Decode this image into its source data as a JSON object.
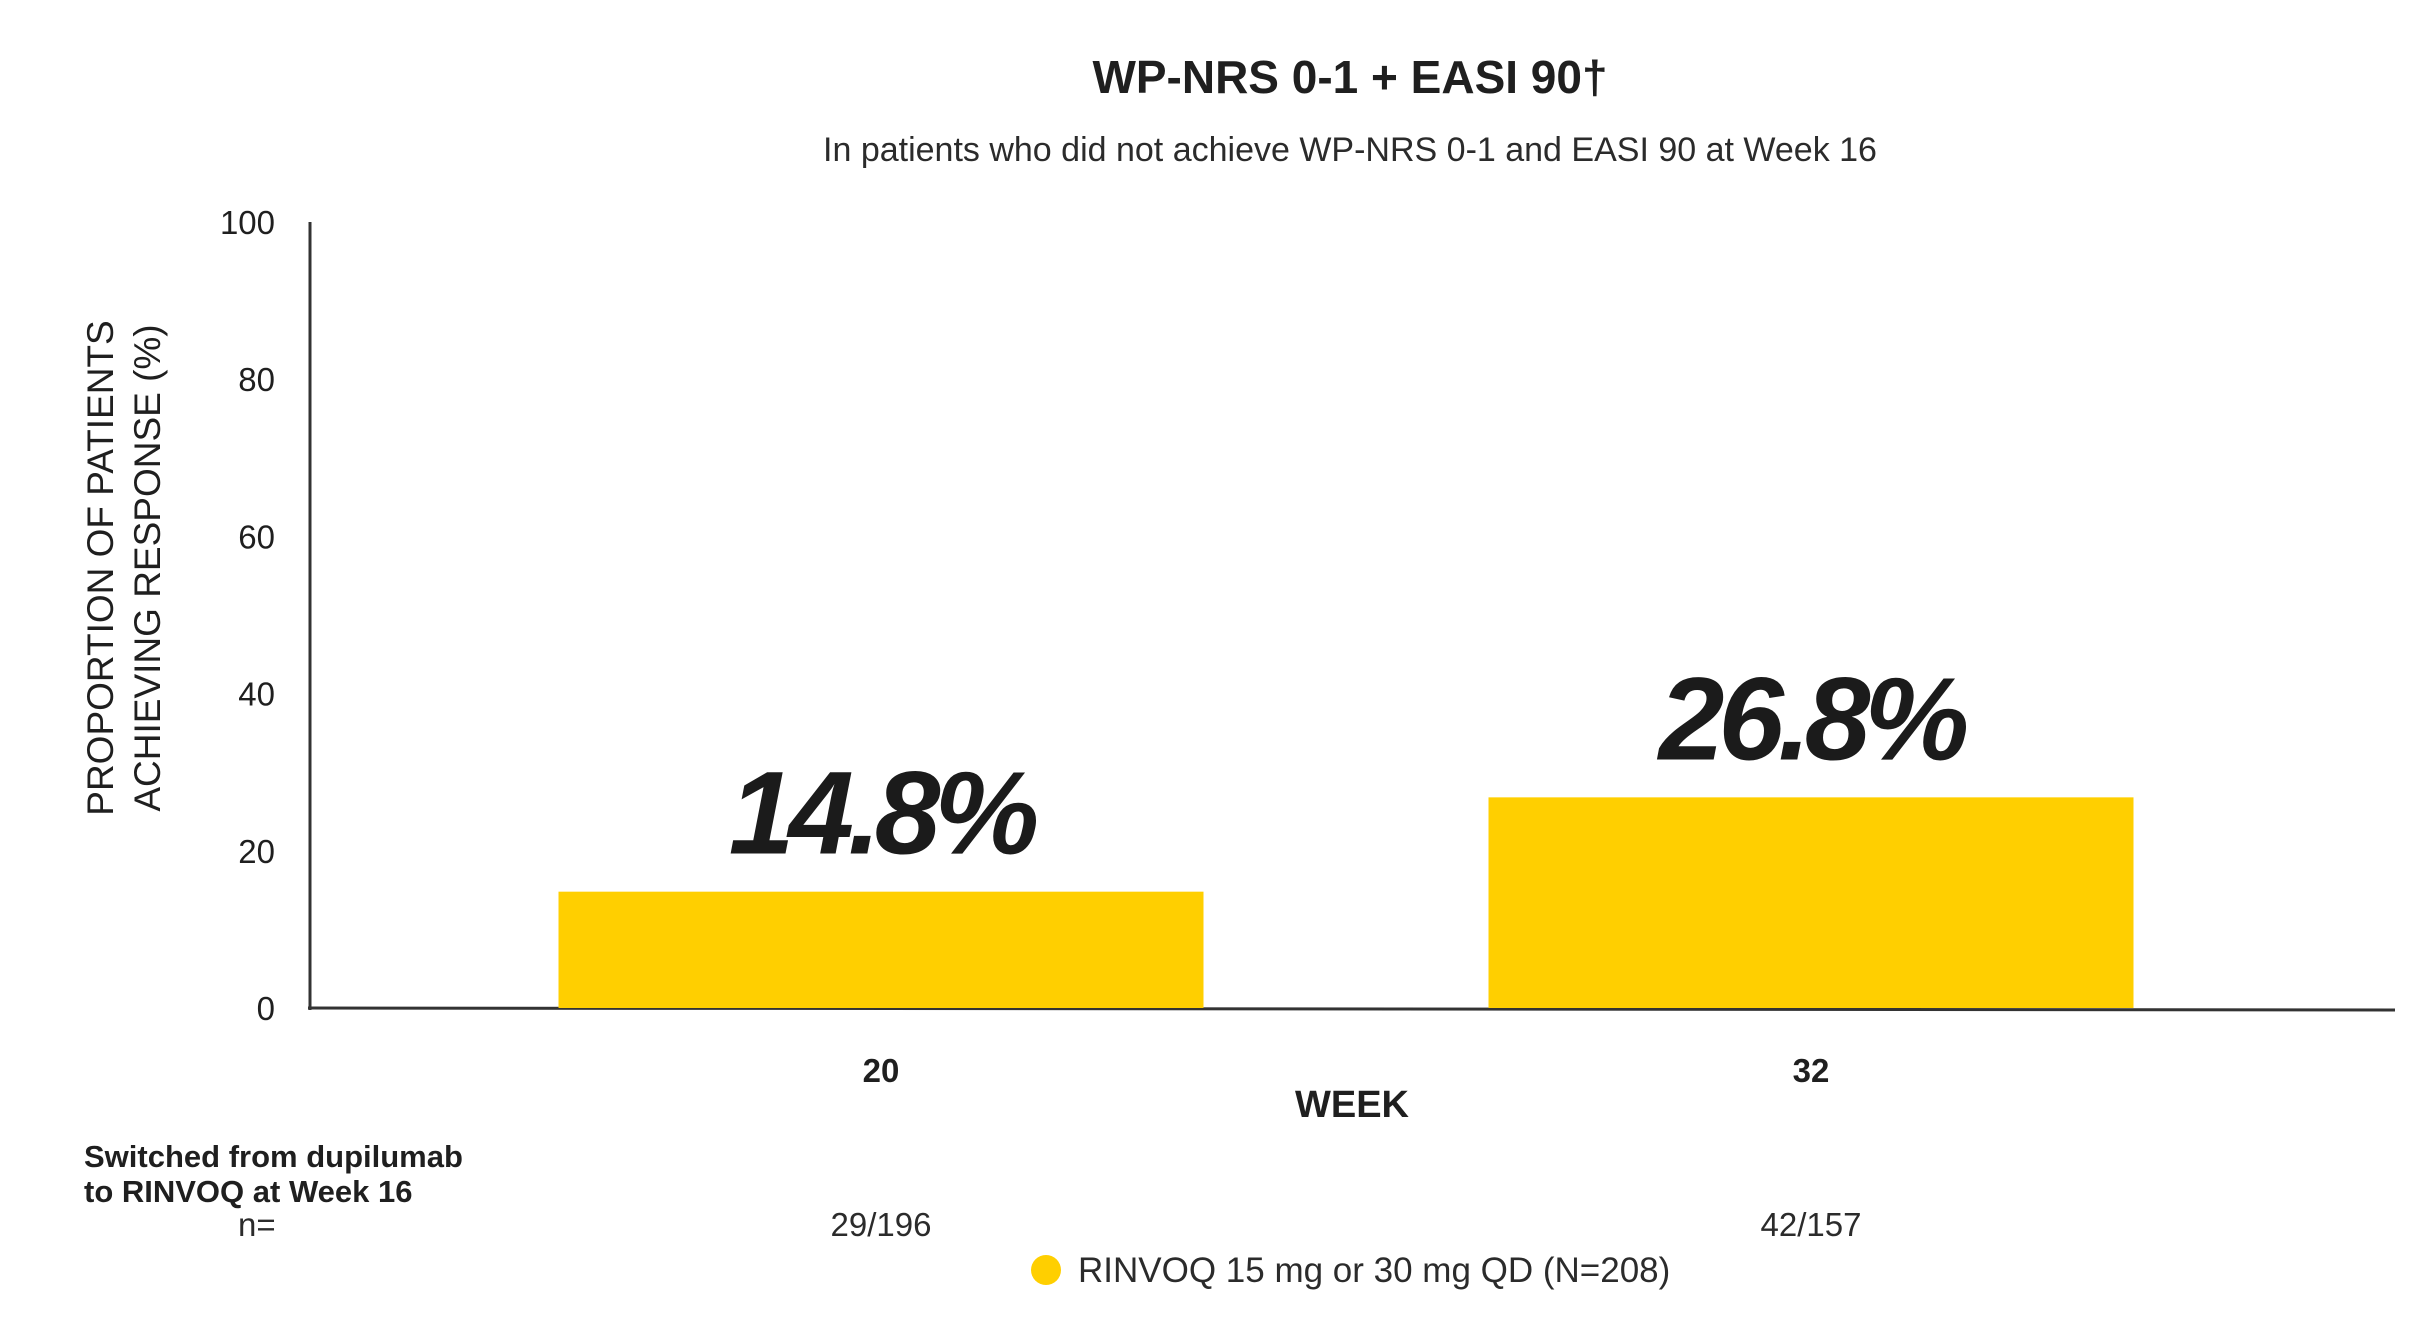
{
  "chart_data": {
    "type": "bar",
    "title": "WP-NRS 0-1 + EASI 90†",
    "subtitle": "In patients who did not achieve WP-NRS 0-1 and EASI 90 at Week 16",
    "ylabel_lines": [
      "PROPORTION OF PATIENTS",
      "ACHIEVING RESPONSE  (%)"
    ],
    "xlabel": "WEEK",
    "ylim": [
      0,
      100
    ],
    "yticks": [
      0,
      20,
      40,
      60,
      80,
      100
    ],
    "categories": [
      "20",
      "32"
    ],
    "series": [
      {
        "name": "RINVOQ 15 mg or 30 mg QD (N=208)",
        "values": [
          14.8,
          26.8
        ],
        "data_labels": [
          "14.8%",
          "26.8%"
        ],
        "n_counts": [
          "29/196",
          "42/157"
        ]
      }
    ],
    "grid": false,
    "legend_position": "bottom-center",
    "colors": {
      "bar": "#ffcf00",
      "axis": "#333333"
    }
  },
  "footnote": {
    "lines": [
      "Switched from dupilumab",
      "to RINVOQ at Week 16"
    ],
    "n_label": "n="
  }
}
